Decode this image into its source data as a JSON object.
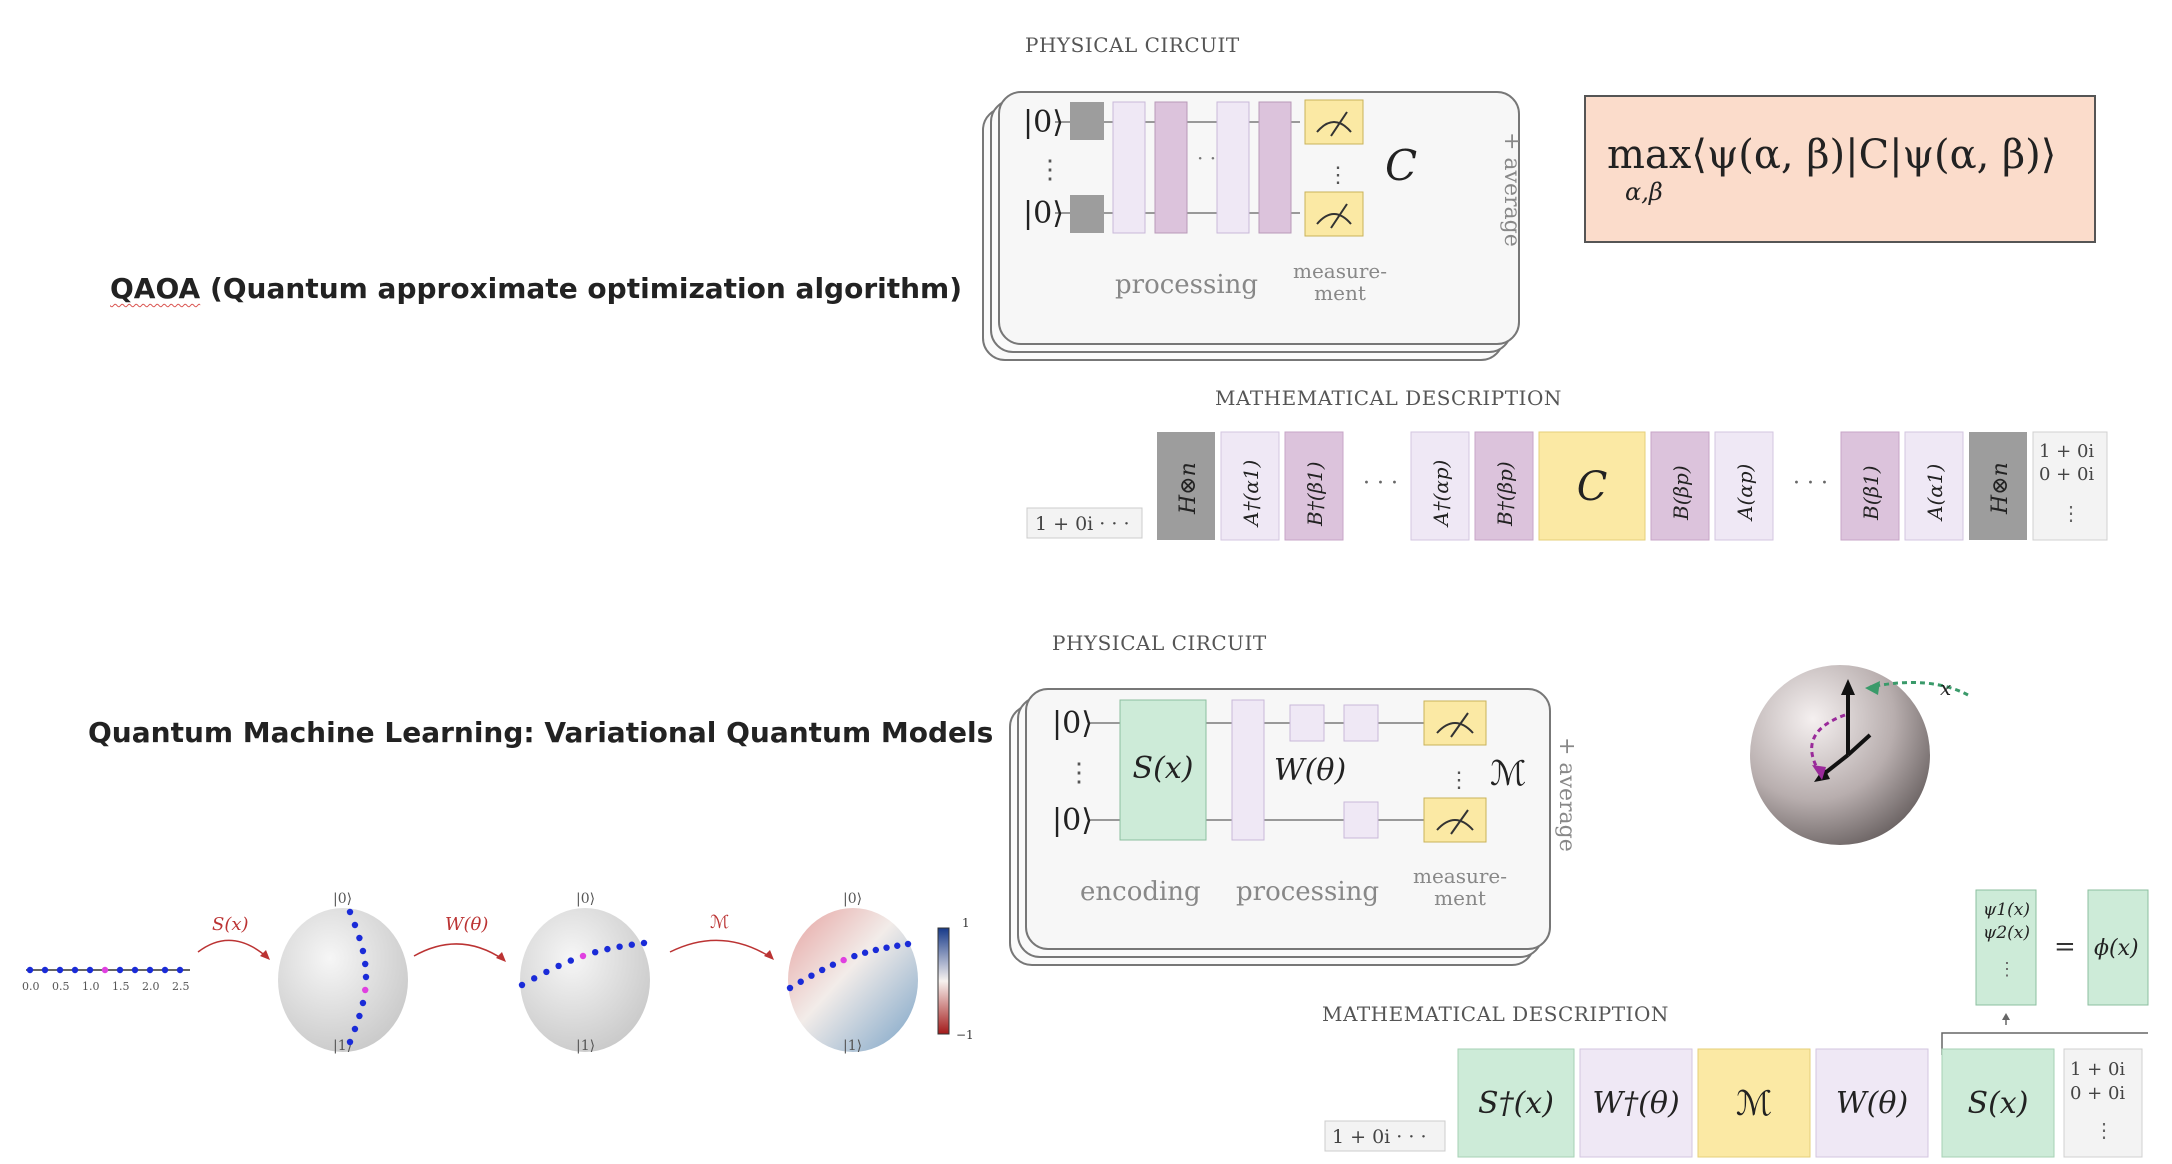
{
  "headings": {
    "qaoa_abbr": "QAOA",
    "qaoa_rest": " (Quantum approximate optimization algorithm)",
    "qml": "Quantum Machine Learning: Variational Quantum Models"
  },
  "qaoa": {
    "physical_title": "PHYSICAL CIRCUIT",
    "math_title": "MATHEMATICAL DESCRIPTION",
    "ket0_top": "|0⟩",
    "ket0_bottom": "|0⟩",
    "cost": "C",
    "processing": "processing",
    "measurement_1": "measure-",
    "measurement_2": "ment",
    "average": "+ average",
    "objective": "max⟨ψ(α, β)|C|ψ(α, β)⟩",
    "objective_sub": "α,β",
    "vector_row": "1 + 0i · · ·",
    "vector_col_1": "1 + 0i",
    "vector_col_2": "0 + 0i",
    "dots": "· · ·",
    "blocks": [
      "H⊗n",
      "A†(α1)",
      "B†(β1)",
      "A†(αp)",
      "B†(βp)",
      "C",
      "B(βp)",
      "A(αp)",
      "B(β1)",
      "A(α1)",
      "H⊗n"
    ]
  },
  "qml": {
    "physical_title": "PHYSICAL CIRCUIT",
    "math_title": "MATHEMATICAL DESCRIPTION",
    "ket0_top": "|0⟩",
    "ket0_bottom": "|0⟩",
    "encoding_gate": "S(x)",
    "processing_gate": "W(θ)",
    "measurement_symbol": "ℳ",
    "encoding": "encoding",
    "processing": "processing",
    "measurement_1": "measure-",
    "measurement_2": "ment",
    "average": "+ average",
    "sphere_x_label": "x",
    "feature_1": "ψ1(x)",
    "feature_2": "ψ2(x)",
    "equals": "=",
    "phi": "ϕ(x)",
    "vector_row": "1 + 0i · · ·",
    "vector_col_1": "1 + 0i",
    "vector_col_2": "0 + 0i",
    "blocks": [
      "S†(x)",
      "W†(θ)",
      "ℳ",
      "W(θ)",
      "S(x)"
    ]
  },
  "bloch_flow": {
    "axis_ticks": [
      "0.0",
      "0.5",
      "1.0",
      "1.5",
      "2.0",
      "2.5"
    ],
    "arrow_1": "S(x)",
    "arrow_2": "W(θ)",
    "arrow_3": "ℳ",
    "north": "|0⟩",
    "south": "|1⟩",
    "colorbar_max": "1",
    "colorbar_min": "−1"
  },
  "colors": {
    "purple_block": "#dcc3dc",
    "lavender_block": "#efe8f5",
    "yellow_block": "#fbe9a4",
    "green_block": "#cdebd8",
    "gray_block": "#9d9d9d",
    "objective_bg": "#fbdccb",
    "dot_blue": "#1a2bd8",
    "dot_magenta": "#e040e0"
  }
}
